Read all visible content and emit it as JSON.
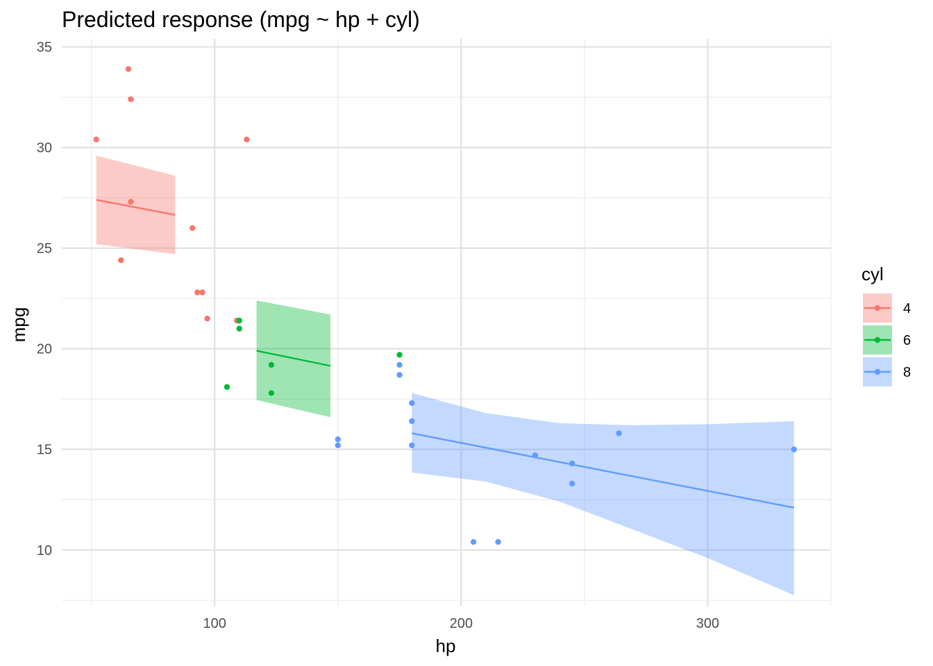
{
  "chart_data": {
    "type": "scatter",
    "title": "Predicted response (mpg ~ hp + cyl)",
    "xlabel": "hp",
    "ylabel": "mpg",
    "xlim": [
      38,
      350
    ],
    "ylim": [
      7.2,
      35.4
    ],
    "x_ticks": [
      100,
      200,
      300
    ],
    "y_ticks": [
      10,
      15,
      20,
      25,
      30,
      35
    ],
    "grid": true,
    "legend": {
      "title": "cyl",
      "position": "right"
    },
    "series": [
      {
        "name": "4",
        "color": "#F8766D",
        "points": [
          [
            52,
            30.4
          ],
          [
            62,
            24.4
          ],
          [
            65,
            33.9
          ],
          [
            66,
            32.4
          ],
          [
            66,
            27.3
          ],
          [
            91,
            26.0
          ],
          [
            93,
            22.8
          ],
          [
            95,
            22.8
          ],
          [
            97,
            21.5
          ],
          [
            109,
            21.4
          ],
          [
            113,
            30.4
          ]
        ],
        "fit": [
          [
            52,
            27.4
          ],
          [
            84,
            26.65
          ]
        ],
        "band_upper": [
          [
            52,
            29.6
          ],
          [
            84,
            28.6
          ]
        ],
        "band_lower": [
          [
            52,
            25.2
          ],
          [
            84,
            24.7
          ]
        ]
      },
      {
        "name": "6",
        "color": "#00BA38",
        "points": [
          [
            105,
            18.1
          ],
          [
            110,
            21.0
          ],
          [
            110,
            21.4
          ],
          [
            123,
            19.2
          ],
          [
            123,
            17.8
          ],
          [
            175,
            19.7
          ]
        ],
        "fit": [
          [
            117,
            19.9
          ],
          [
            147,
            19.15
          ]
        ],
        "band_upper": [
          [
            117,
            22.4
          ],
          [
            147,
            21.7
          ]
        ],
        "band_lower": [
          [
            117,
            17.45
          ],
          [
            147,
            16.6
          ]
        ]
      },
      {
        "name": "8",
        "color": "#619CFF",
        "points": [
          [
            150,
            15.5
          ],
          [
            150,
            15.2
          ],
          [
            175,
            19.2
          ],
          [
            175,
            18.7
          ],
          [
            180,
            17.3
          ],
          [
            180,
            16.4
          ],
          [
            180,
            15.2
          ],
          [
            205,
            10.4
          ],
          [
            215,
            10.4
          ],
          [
            230,
            14.7
          ],
          [
            245,
            14.3
          ],
          [
            245,
            13.3
          ],
          [
            264,
            15.8
          ],
          [
            335,
            15.0
          ]
        ],
        "fit": [
          [
            180,
            15.8
          ],
          [
            335,
            12.1
          ]
        ],
        "band_upper": [
          [
            180,
            17.8
          ],
          [
            210,
            16.8
          ],
          [
            240,
            16.3
          ],
          [
            270,
            16.2
          ],
          [
            300,
            16.25
          ],
          [
            335,
            16.4
          ]
        ],
        "band_lower": [
          [
            180,
            13.85
          ],
          [
            210,
            13.4
          ],
          [
            240,
            12.4
          ],
          [
            270,
            11.0
          ],
          [
            300,
            9.6
          ],
          [
            335,
            7.75
          ]
        ]
      }
    ]
  }
}
